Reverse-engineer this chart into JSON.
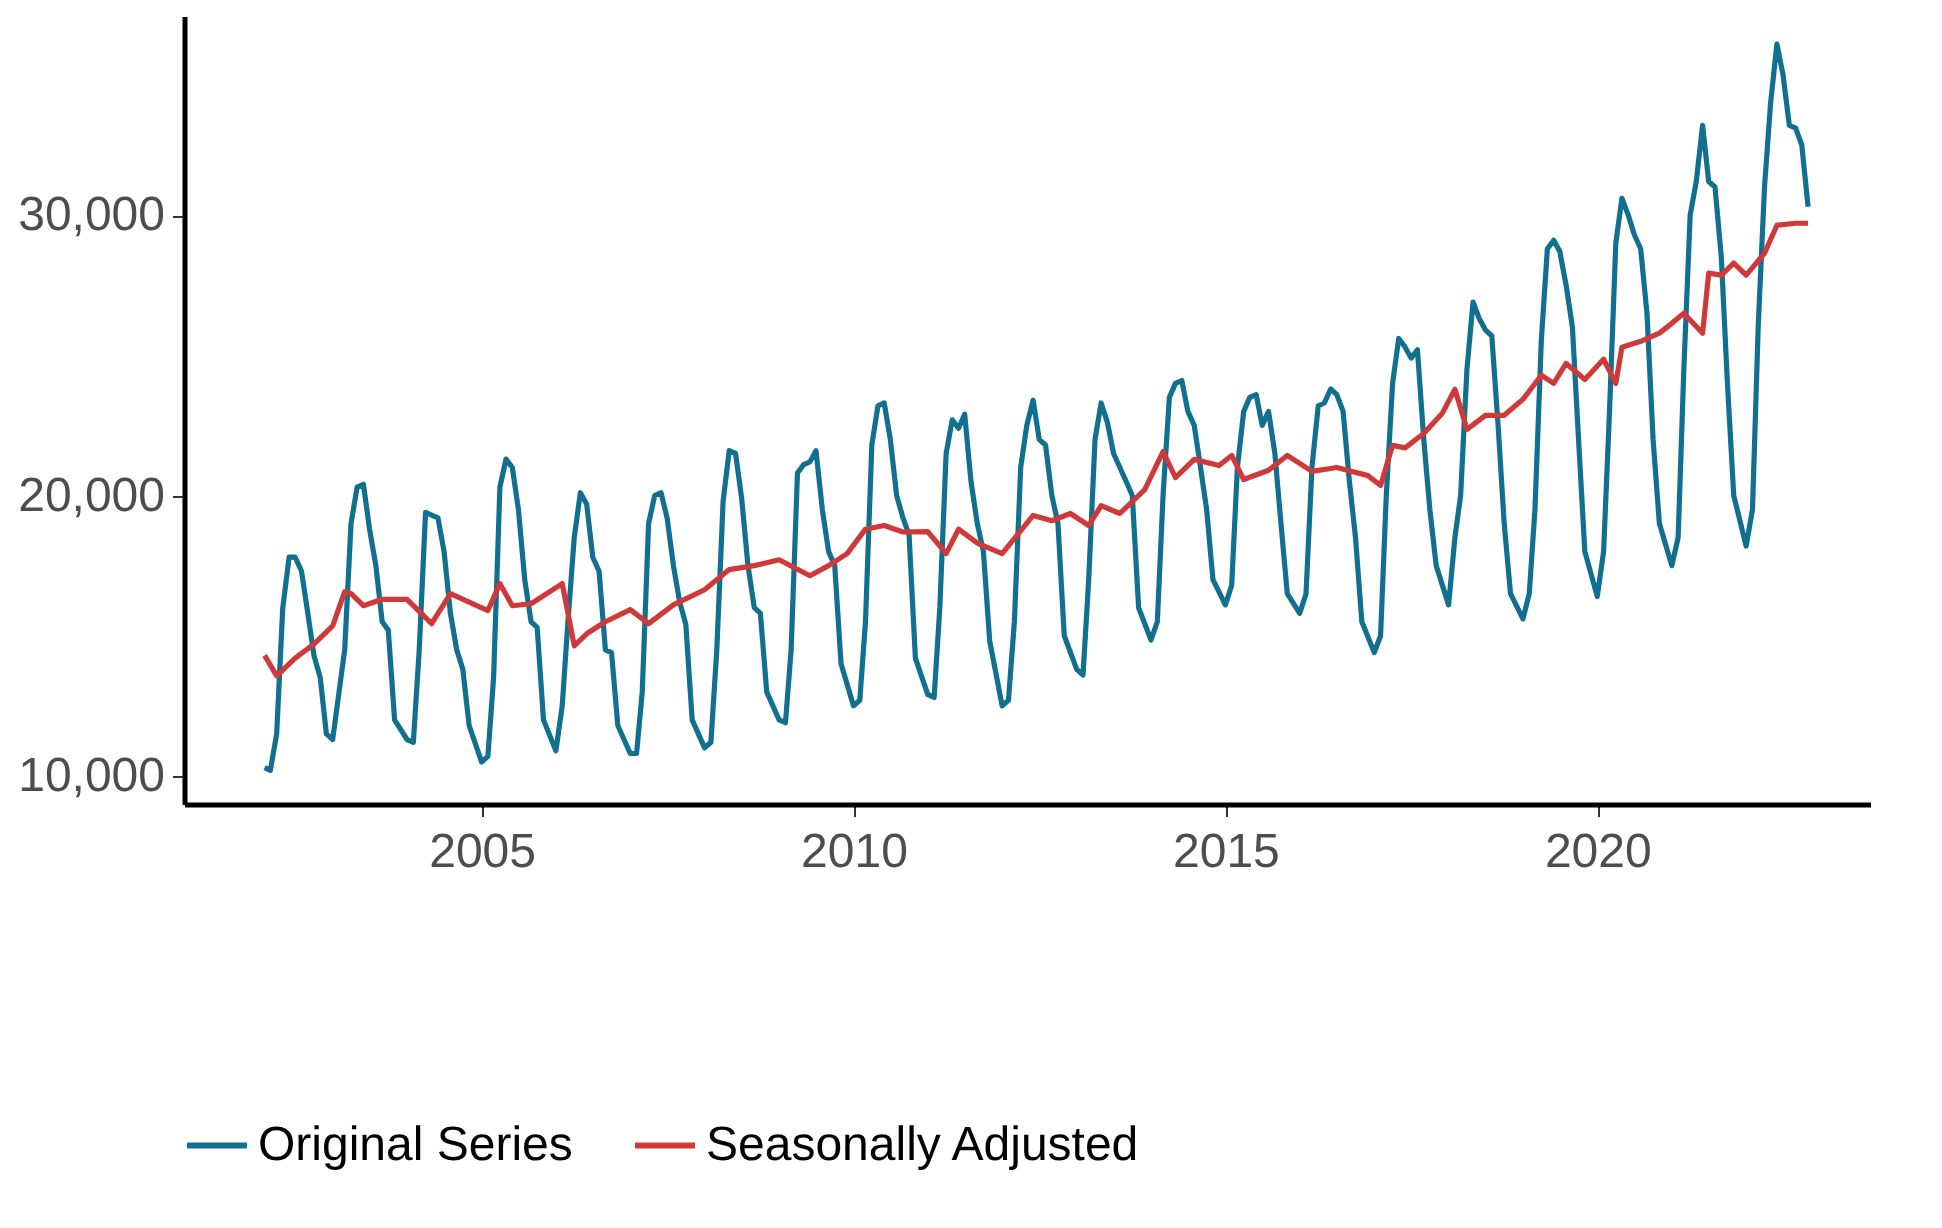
{
  "chart_data": {
    "type": "line",
    "x": [
      "2002-02",
      "2002-03",
      "2002-04",
      "2002-05",
      "2002-06",
      "2002-07",
      "2002-08",
      "2002-09",
      "2002-10",
      "2002-11",
      "2002-12",
      "2003-01",
      "2003-03",
      "2003-04",
      "2003-05",
      "2003-06",
      "2003-07",
      "2003-08",
      "2003-09",
      "2003-10",
      "2003-11",
      "2004-01",
      "2004-02",
      "2004-03",
      "2004-04",
      "2004-05",
      "2004-06",
      "2004-07",
      "2004-08",
      "2004-09",
      "2004-10",
      "2004-11",
      "2005-01",
      "2005-02",
      "2005-03",
      "2005-04",
      "2005-05",
      "2005-06",
      "2005-07",
      "2005-08",
      "2005-09",
      "2005-10",
      "2005-11",
      "2006-01",
      "2006-02",
      "2006-03",
      "2006-04",
      "2006-05",
      "2006-06",
      "2006-07",
      "2006-08",
      "2006-09",
      "2006-10",
      "2006-11",
      "2007-01",
      "2007-02",
      "2007-03",
      "2007-04",
      "2007-05",
      "2007-06",
      "2007-07",
      "2007-08",
      "2007-09",
      "2007-10",
      "2007-11",
      "2008-01",
      "2008-02",
      "2008-03",
      "2008-04",
      "2008-05",
      "2008-06",
      "2008-07",
      "2008-08",
      "2008-09",
      "2008-10",
      "2008-11",
      "2009-01",
      "2009-02",
      "2009-03",
      "2009-04",
      "2009-05",
      "2009-06",
      "2009-07",
      "2009-08",
      "2009-09",
      "2009-10",
      "2009-11",
      "2010-01",
      "2010-02",
      "2010-03",
      "2010-04",
      "2010-05",
      "2010-06",
      "2010-07",
      "2010-08",
      "2010-09",
      "2010-10",
      "2010-11",
      "2011-01",
      "2011-02",
      "2011-03",
      "2011-04",
      "2011-05",
      "2011-06",
      "2011-07",
      "2011-08",
      "2011-09",
      "2011-10",
      "2011-11",
      "2012-01",
      "2012-02",
      "2012-03",
      "2012-04",
      "2012-05",
      "2012-06",
      "2012-07",
      "2012-08",
      "2012-09",
      "2012-10",
      "2012-11",
      "2013-01",
      "2013-02",
      "2013-03",
      "2013-04",
      "2013-05",
      "2013-06",
      "2013-07",
      "2013-08",
      "2013-09",
      "2013-10",
      "2013-11",
      "2014-01",
      "2014-02",
      "2014-03",
      "2014-04",
      "2014-05",
      "2014-06",
      "2014-07",
      "2014-08",
      "2014-09",
      "2014-10",
      "2014-11",
      "2015-01",
      "2015-02",
      "2015-03",
      "2015-04",
      "2015-05",
      "2015-06",
      "2015-07",
      "2015-08",
      "2015-09",
      "2015-10",
      "2015-11",
      "2016-01",
      "2016-02",
      "2016-03",
      "2016-04",
      "2016-05",
      "2016-06",
      "2016-07",
      "2016-08",
      "2016-09",
      "2016-10",
      "2016-11",
      "2017-01",
      "2017-02",
      "2017-03",
      "2017-04",
      "2017-05",
      "2017-06",
      "2017-07",
      "2017-08",
      "2017-09",
      "2017-10",
      "2017-11",
      "2018-01",
      "2018-02",
      "2018-03",
      "2018-04",
      "2018-05",
      "2018-06",
      "2018-07",
      "2018-08",
      "2018-09",
      "2018-10",
      "2018-11",
      "2019-01",
      "2019-02",
      "2019-03",
      "2019-04",
      "2019-05",
      "2019-06",
      "2019-07",
      "2019-08",
      "2019-09",
      "2019-10",
      "2019-11",
      "2020-01",
      "2020-02",
      "2020-03",
      "2020-04",
      "2020-05",
      "2020-06",
      "2020-07",
      "2020-08",
      "2020-09",
      "2020-10",
      "2020-11",
      "2021-01",
      "2021-02",
      "2021-03",
      "2021-04",
      "2021-05",
      "2021-06",
      "2021-07",
      "2021-08",
      "2021-09",
      "2021-10",
      "2021-11",
      "2022-01",
      "2022-02",
      "2022-03",
      "2022-04",
      "2022-05",
      "2022-06",
      "2022-07",
      "2022-08",
      "2022-09",
      "2022-10",
      "2022-11"
    ],
    "series": [
      {
        "name": "Original Series",
        "color": "#11708f",
        "values": [
          10300,
          10200,
          11500,
          16000,
          17800,
          17800,
          17300,
          15800,
          14300,
          13500,
          11500,
          11300,
          14500,
          19000,
          20300,
          20400,
          18800,
          17500,
          15500,
          15200,
          12000,
          11300,
          11200,
          14500,
          19400,
          19300,
          19200,
          18000,
          15800,
          14500,
          13800,
          11800,
          10500,
          10700,
          13500,
          20300,
          21300,
          21000,
          19500,
          17000,
          15500,
          15300,
          12000,
          10900,
          12500,
          15500,
          18500,
          20100,
          19700,
          17800,
          17300,
          14500,
          14400,
          11800,
          10800,
          10800,
          13000,
          19000,
          20000,
          20100,
          19200,
          17500,
          16200,
          15400,
          12000,
          11000,
          11200,
          14500,
          19800,
          21600,
          21500,
          19900,
          17500,
          16000,
          15800,
          13000,
          12000,
          11900,
          14500,
          20800,
          21100,
          21200,
          21600,
          19500,
          18000,
          17500,
          14000,
          12500,
          12700,
          15500,
          21800,
          23200,
          23300,
          22000,
          20000,
          19200,
          18600,
          14200,
          12900,
          12800,
          16000,
          21500,
          22700,
          22400,
          22900,
          20500,
          19000,
          18000,
          14800,
          12500,
          12700,
          15500,
          21000,
          22500,
          23400,
          22000,
          21800,
          20000,
          19000,
          15000,
          13800,
          13600,
          17000,
          22000,
          23300,
          22600,
          21500,
          21000,
          20500,
          20000,
          16000,
          14850,
          15500,
          20000,
          23500,
          24000,
          24100,
          23000,
          22500,
          21000,
          19500,
          17000,
          16100,
          16800,
          21000,
          23000,
          23500,
          23600,
          22500,
          23000,
          21500,
          19000,
          16500,
          15800,
          16500,
          21000,
          23200,
          23300,
          23800,
          23600,
          23000,
          20500,
          18500,
          15500,
          14400,
          15000,
          20000,
          24000,
          25600,
          25300,
          24900,
          25200,
          22000,
          19500,
          17500,
          16100,
          18500,
          20000,
          24500,
          26900,
          26300,
          25900,
          25700,
          22500,
          19000,
          16500,
          15600,
          16500,
          19500,
          25500,
          28800,
          29100,
          28700,
          27500,
          26000,
          22000,
          18000,
          16400,
          18000,
          23000,
          29000,
          30600,
          30000,
          29300,
          28800,
          26500,
          22000,
          19000,
          17500,
          18500,
          24500,
          30000,
          31200,
          33200,
          31200,
          31000,
          28500,
          24000,
          20000,
          18200,
          19500,
          26000,
          31000,
          34000,
          36100,
          35000,
          33200,
          33100,
          32500,
          30300
        ]
      },
      {
        "name": "Seasonally Adjusted",
        "color": "#d0393a",
        "x": [
          "2002-02",
          "2002-04",
          "2002-07",
          "2002-10",
          "2003-01",
          "2003-03",
          "2003-04",
          "2003-06",
          "2003-09",
          "2004-01",
          "2004-05",
          "2004-08",
          "2005-02",
          "2005-04",
          "2005-06",
          "2005-09",
          "2006-02",
          "2006-04",
          "2006-06",
          "2006-09",
          "2007-01",
          "2007-04",
          "2007-08",
          "2008-01",
          "2008-05",
          "2008-09",
          "2009-01",
          "2009-06",
          "2009-09",
          "2009-12",
          "2010-03",
          "2010-06",
          "2010-09",
          "2011-01",
          "2011-04",
          "2011-06",
          "2011-09",
          "2012-01",
          "2012-06",
          "2012-09",
          "2012-12",
          "2013-03",
          "2013-05",
          "2013-08",
          "2013-12",
          "2014-03",
          "2014-05",
          "2014-08",
          "2014-12",
          "2015-02",
          "2015-04",
          "2015-08",
          "2015-11",
          "2016-03",
          "2016-07",
          "2016-12",
          "2017-02",
          "2017-04",
          "2017-06",
          "2017-09",
          "2017-12",
          "2018-02",
          "2018-04",
          "2018-07",
          "2018-10",
          "2019-01",
          "2019-04",
          "2019-06",
          "2019-08",
          "2019-11",
          "2020-02",
          "2020-04",
          "2020-05",
          "2020-08",
          "2020-11",
          "2021-01",
          "2021-03",
          "2021-06",
          "2021-07",
          "2021-09",
          "2021-11",
          "2022-01",
          "2022-04",
          "2022-06",
          "2022-09",
          "2022-11"
        ],
        "values": [
          14300,
          13570,
          14200,
          14700,
          15350,
          16570,
          16500,
          16070,
          16300,
          16300,
          15430,
          16500,
          15900,
          16860,
          16070,
          16140,
          16860,
          14640,
          15070,
          15500,
          15930,
          15430,
          16100,
          16640,
          17360,
          17500,
          17710,
          17140,
          17500,
          17930,
          18800,
          18930,
          18700,
          18710,
          17930,
          18800,
          18300,
          17930,
          19290,
          19100,
          19360,
          18930,
          19640,
          19360,
          20210,
          21570,
          20640,
          21290,
          21070,
          21430,
          20570,
          20900,
          21430,
          20860,
          21000,
          20710,
          20360,
          21790,
          21700,
          22210,
          22930,
          23790,
          22360,
          22860,
          22860,
          23430,
          24290,
          24000,
          24710,
          24140,
          24860,
          24000,
          25290,
          25500,
          25790,
          26140,
          26500,
          25790,
          27930,
          27860,
          28290,
          27860,
          28640,
          29640,
          29710,
          29710
        ]
      }
    ],
    "xlim": [
      "2001-01",
      "2023-09"
    ],
    "xticks": [
      "2005",
      "2010",
      "2015",
      "2020"
    ],
    "ylim": [
      9000,
      37100
    ],
    "yticks": [
      {
        "value": 10000,
        "label": "10,000"
      },
      {
        "value": 20000,
        "label": "20,000"
      },
      {
        "value": 30000,
        "label": "30,000"
      }
    ],
    "grid": false,
    "legend": "bottom",
    "marker": "none",
    "line_style": "solid"
  }
}
